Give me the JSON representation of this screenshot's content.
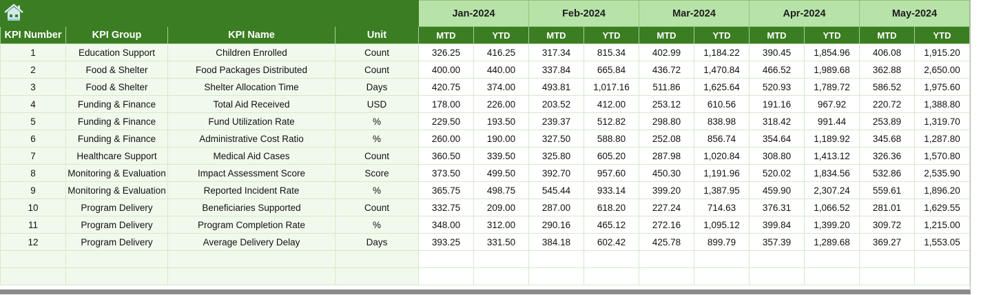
{
  "header": {
    "home_icon": "home-icon",
    "months": [
      "Jan-2024",
      "Feb-2024",
      "Mar-2024",
      "Apr-2024",
      "May-2024"
    ],
    "columns": [
      "KPI Number",
      "KPI Group",
      "KPI Name",
      "Unit"
    ],
    "sub_columns": [
      "MTD",
      "YTD"
    ]
  },
  "colors": {
    "header_green": "#3b7d22",
    "month_green": "#b7e3a8",
    "row_tint": "#f1f9ed"
  },
  "rows": [
    {
      "num": "1",
      "group": "Education Support",
      "name": "Children Enrolled",
      "unit": "Count",
      "values": [
        "326.25",
        "416.25",
        "317.34",
        "815.34",
        "402.99",
        "1,184.22",
        "390.45",
        "1,854.96",
        "406.08",
        "1,915.20"
      ]
    },
    {
      "num": "2",
      "group": "Food & Shelter",
      "name": "Food Packages Distributed",
      "unit": "Count",
      "values": [
        "400.00",
        "440.00",
        "337.84",
        "665.84",
        "436.72",
        "1,470.84",
        "466.52",
        "1,989.68",
        "362.88",
        "2,650.00"
      ]
    },
    {
      "num": "3",
      "group": "Food & Shelter",
      "name": "Shelter Allocation Time",
      "unit": "Days",
      "values": [
        "420.75",
        "374.00",
        "493.81",
        "1,017.16",
        "511.86",
        "1,625.64",
        "520.93",
        "1,789.72",
        "586.52",
        "1,975.60"
      ]
    },
    {
      "num": "4",
      "group": "Funding & Finance",
      "name": "Total Aid Received",
      "unit": "USD",
      "values": [
        "178.00",
        "226.00",
        "203.52",
        "412.00",
        "253.12",
        "610.56",
        "191.16",
        "967.92",
        "220.72",
        "1,388.80"
      ]
    },
    {
      "num": "5",
      "group": "Funding & Finance",
      "name": "Fund Utilization Rate",
      "unit": "%",
      "values": [
        "229.50",
        "193.50",
        "239.37",
        "512.82",
        "298.80",
        "838.98",
        "318.42",
        "991.44",
        "253.89",
        "1,319.70"
      ]
    },
    {
      "num": "6",
      "group": "Funding & Finance",
      "name": "Administrative Cost Ratio",
      "unit": "%",
      "values": [
        "260.00",
        "190.00",
        "327.50",
        "588.80",
        "252.08",
        "856.74",
        "354.64",
        "1,189.92",
        "345.68",
        "1,287.80"
      ]
    },
    {
      "num": "7",
      "group": "Healthcare Support",
      "name": "Medical Aid Cases",
      "unit": "Count",
      "values": [
        "360.50",
        "339.50",
        "325.80",
        "605.20",
        "287.98",
        "1,020.84",
        "308.80",
        "1,413.12",
        "326.36",
        "1,570.80"
      ]
    },
    {
      "num": "8",
      "group": "Monitoring & Evaluation",
      "name": "Impact Assessment Score",
      "unit": "Score",
      "values": [
        "373.50",
        "499.50",
        "392.70",
        "957.60",
        "450.30",
        "1,191.96",
        "520.02",
        "1,834.56",
        "532.86",
        "2,535.90"
      ]
    },
    {
      "num": "9",
      "group": "Monitoring & Evaluation",
      "name": "Reported Incident Rate",
      "unit": "%",
      "values": [
        "365.75",
        "498.75",
        "545.44",
        "933.14",
        "399.20",
        "1,387.95",
        "459.90",
        "2,307.24",
        "559.61",
        "1,896.20"
      ]
    },
    {
      "num": "10",
      "group": "Program Delivery",
      "name": "Beneficiaries Supported",
      "unit": "Count",
      "values": [
        "332.75",
        "209.00",
        "287.00",
        "618.20",
        "227.24",
        "714.63",
        "376.31",
        "1,066.52",
        "281.01",
        "1,629.55"
      ]
    },
    {
      "num": "11",
      "group": "Program Delivery",
      "name": "Program Completion Rate",
      "unit": "%",
      "values": [
        "348.00",
        "312.00",
        "290.16",
        "465.12",
        "272.16",
        "1,095.12",
        "399.84",
        "1,399.20",
        "309.72",
        "1,215.00"
      ]
    },
    {
      "num": "12",
      "group": "Program Delivery",
      "name": "Average Delivery Delay",
      "unit": "Days",
      "values": [
        "393.25",
        "331.50",
        "384.18",
        "602.42",
        "425.78",
        "899.79",
        "357.39",
        "1,289.68",
        "369.27",
        "1,553.05"
      ]
    }
  ]
}
